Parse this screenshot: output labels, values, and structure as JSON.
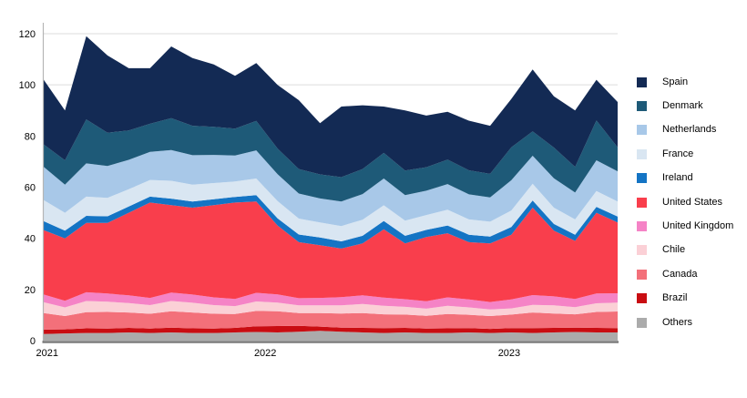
{
  "chart_data": {
    "type": "area",
    "stacked": true,
    "title": "",
    "xlabel": "",
    "ylabel": "",
    "ylim": [
      0,
      120
    ],
    "y_ticks": [
      0,
      20,
      40,
      60,
      80,
      100,
      120
    ],
    "x_tick_labels": [
      "2021",
      "2022",
      "2023"
    ],
    "x_tick_positions": [
      0.006,
      0.386,
      0.811
    ],
    "grid": true,
    "legend_position": "right",
    "colors": {
      "grid_line": "#dcdcdc",
      "left_axis_line": "#b5b5b5",
      "bottom_axis_line": "#7a7a7a",
      "background": "#ffffff"
    },
    "series": [
      {
        "name": "Spain",
        "color": "#132a54",
        "values": [
          25.3,
          19.5,
          32.5,
          30.2,
          24.3,
          21.7,
          28.0,
          26.5,
          24.4,
          20.6,
          22.6,
          24.9,
          26.9,
          20.0,
          27.6,
          24.9,
          18.1,
          23.5,
          20.2,
          18.7,
          19.4,
          18.8,
          18.9,
          24.2,
          20.0,
          22.1,
          15.9,
          17.7
        ]
      },
      {
        "name": "Denmark",
        "color": "#1e5a78",
        "values": [
          8.8,
          9.5,
          17.2,
          13.0,
          11.5,
          11.0,
          12.5,
          11.5,
          11.0,
          10.5,
          11.5,
          10.0,
          9.6,
          9.4,
          9.5,
          9.8,
          10.0,
          9.6,
          9.2,
          9.6,
          9.4,
          9.2,
          12.9,
          9.5,
          12.0,
          10.0,
          15.6,
          9.4
        ]
      },
      {
        "name": "Netherlands",
        "color": "#a8c8e8",
        "values": [
          13.0,
          11.0,
          13.0,
          12.5,
          11.5,
          11.0,
          12.0,
          11.5,
          11.0,
          10.2,
          11.0,
          10.5,
          9.8,
          9.4,
          9.6,
          10.0,
          10.5,
          10.0,
          9.5,
          10.0,
          9.8,
          9.5,
          11.8,
          11.0,
          11.5,
          10.5,
          12.0,
          11.8
        ]
      },
      {
        "name": "France",
        "color": "#d9e6f2",
        "values": [
          8.2,
          7.0,
          7.5,
          7.2,
          6.8,
          6.5,
          7.0,
          6.6,
          6.3,
          6.0,
          6.5,
          6.8,
          6.2,
          5.9,
          6.0,
          6.3,
          6.1,
          5.9,
          5.8,
          6.2,
          6.0,
          5.8,
          6.5,
          6.5,
          6.4,
          6.0,
          6.2,
          5.9
        ]
      },
      {
        "name": "Ireland",
        "color": "#1474c4",
        "values": [
          3.5,
          3.0,
          2.8,
          2.6,
          2.4,
          2.3,
          2.5,
          2.4,
          2.3,
          2.2,
          2.5,
          2.8,
          3.0,
          3.0,
          2.8,
          3.0,
          3.3,
          3.0,
          2.8,
          3.0,
          2.9,
          2.7,
          3.0,
          2.8,
          2.6,
          2.4,
          2.3,
          2.3
        ]
      },
      {
        "name": "United States",
        "color": "#f93e4c",
        "values": [
          25.2,
          24.4,
          27.1,
          27.6,
          32.3,
          37.3,
          34.2,
          34.0,
          36.1,
          37.7,
          35.7,
          26.9,
          21.9,
          20.6,
          19.0,
          20.3,
          26.7,
          21.8,
          25.1,
          25.1,
          22.4,
          22.9,
          25.3,
          34.2,
          25.7,
          22.7,
          31.6,
          27.7
        ]
      },
      {
        "name": "United Kingdom",
        "color": "#f583c6",
        "values": [
          3.0,
          2.6,
          3.4,
          3.2,
          3.0,
          2.8,
          3.3,
          3.2,
          3.0,
          2.8,
          3.4,
          3.2,
          2.8,
          2.9,
          3.2,
          3.4,
          3.2,
          3.0,
          2.9,
          3.3,
          3.1,
          2.9,
          3.5,
          3.8,
          3.5,
          3.2,
          3.8,
          3.6
        ]
      },
      {
        "name": "Chile",
        "color": "#fbd0d6",
        "values": [
          4.2,
          3.4,
          4.4,
          4.0,
          3.7,
          3.4,
          4.0,
          3.8,
          3.4,
          3.1,
          3.7,
          3.4,
          3.0,
          3.0,
          3.2,
          3.5,
          3.3,
          3.0,
          2.8,
          3.2,
          2.9,
          2.6,
          2.4,
          3.0,
          3.2,
          2.8,
          3.4,
          3.5
        ]
      },
      {
        "name": "Canada",
        "color": "#f3707a",
        "values": [
          6.5,
          5.2,
          6.3,
          6.5,
          6.0,
          5.8,
          6.4,
          6.2,
          5.8,
          5.4,
          6.0,
          5.8,
          5.0,
          5.3,
          5.5,
          5.8,
          5.4,
          5.2,
          5.0,
          5.6,
          5.2,
          5.0,
          5.3,
          6.1,
          5.6,
          5.2,
          6.2,
          6.5
        ]
      },
      {
        "name": "Brazil",
        "color": "#c90d12",
        "values": [
          1.7,
          1.6,
          1.8,
          1.7,
          1.8,
          1.7,
          1.9,
          1.8,
          1.7,
          1.8,
          2.2,
          2.5,
          2.3,
          1.7,
          1.6,
          1.8,
          1.9,
          1.8,
          1.7,
          1.8,
          1.7,
          1.6,
          1.7,
          1.9,
          1.8,
          1.7,
          1.8,
          1.7
        ]
      },
      {
        "name": "Others",
        "color": "#ababab",
        "values": [
          2.6,
          2.8,
          3.0,
          3.0,
          3.2,
          3.0,
          3.2,
          3.0,
          3.0,
          3.2,
          3.4,
          3.2,
          3.5,
          3.8,
          3.5,
          3.2,
          3.0,
          3.2,
          3.0,
          3.0,
          3.2,
          3.0,
          3.2,
          3.0,
          3.2,
          3.4,
          3.2,
          3.2
        ]
      }
    ]
  }
}
